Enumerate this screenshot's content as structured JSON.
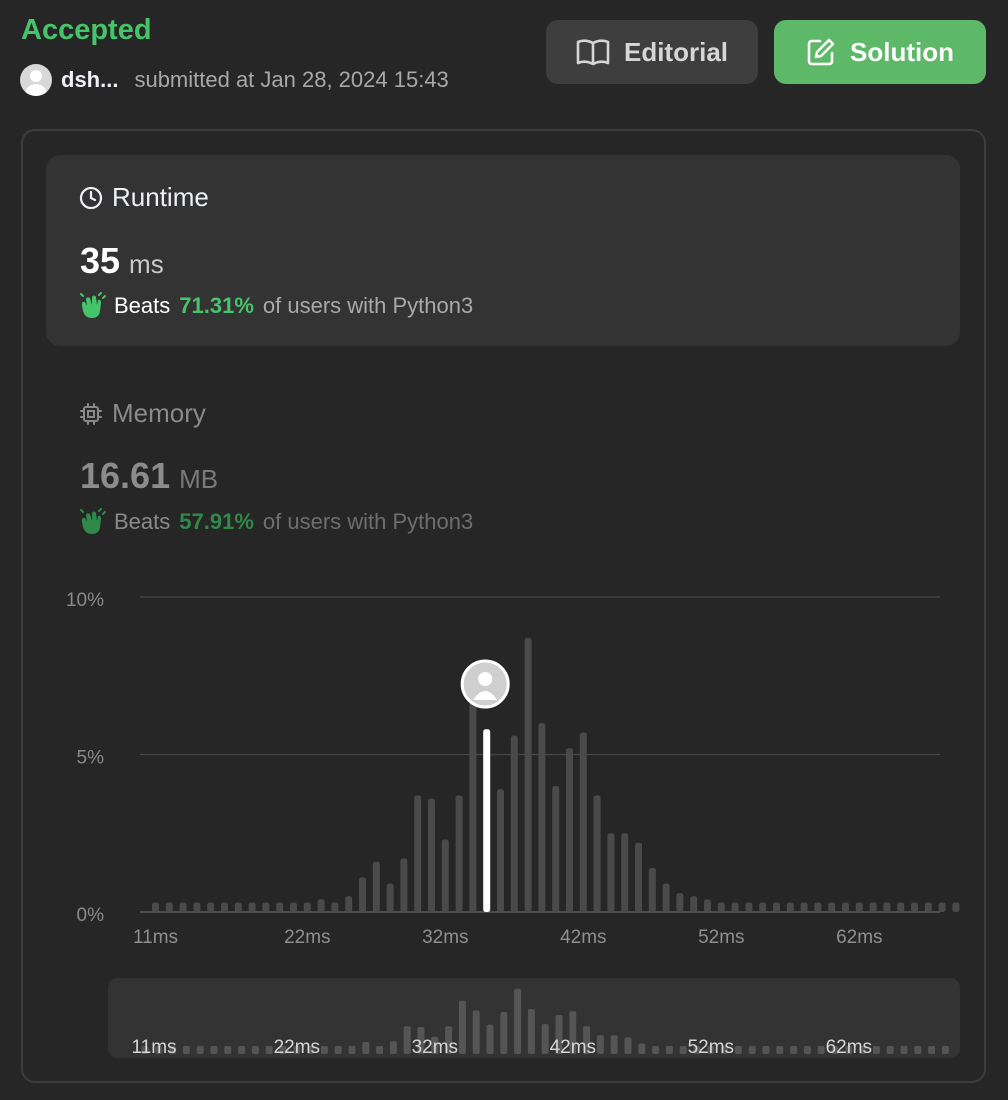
{
  "header": {
    "status": "Accepted",
    "username": "dsh...",
    "submitted_text": "submitted at Jan 28, 2024 15:43",
    "editorial_label": "Editorial",
    "solution_label": "Solution"
  },
  "runtime": {
    "title": "Runtime",
    "value": "35",
    "unit": "ms",
    "beats_word": "Beats",
    "beats_pct": "71.31%",
    "beats_rest": "of users with Python3"
  },
  "memory": {
    "title": "Memory",
    "value": "16.61",
    "unit": "MB",
    "beats_word": "Beats",
    "beats_pct": "57.91%",
    "beats_rest": "of users with Python3"
  },
  "colors": {
    "accent_green": "#45c46a",
    "solution_button": "#5db868",
    "bar": "#4a4a4a",
    "highlight_bar": "#ffffff"
  },
  "icons": {
    "editorial": "book-open-icon",
    "solution": "edit-icon",
    "runtime": "clock-icon",
    "memory": "cpu-chip-icon",
    "beats": "clapping-hands-icon"
  },
  "chart_data": {
    "type": "bar",
    "title": "",
    "xlabel": "",
    "ylabel": "",
    "y_ticks": [
      "10%",
      "5%",
      "0%"
    ],
    "x_ticks": [
      "11ms",
      "22ms",
      "32ms",
      "42ms",
      "52ms",
      "62ms"
    ],
    "ylim": [
      0,
      10
    ],
    "grid": true,
    "highlight_category": "35ms",
    "categories": [
      "11ms",
      "12ms",
      "13ms",
      "14ms",
      "15ms",
      "16ms",
      "17ms",
      "18ms",
      "19ms",
      "20ms",
      "21ms",
      "22ms",
      "23ms",
      "24ms",
      "25ms",
      "26ms",
      "27ms",
      "28ms",
      "29ms",
      "30ms",
      "31ms",
      "32ms",
      "33ms",
      "34ms",
      "35ms",
      "36ms",
      "37ms",
      "38ms",
      "39ms",
      "40ms",
      "41ms",
      "42ms",
      "43ms",
      "44ms",
      "45ms",
      "46ms",
      "47ms",
      "48ms",
      "49ms",
      "50ms",
      "51ms",
      "52ms",
      "53ms",
      "54ms",
      "55ms",
      "56ms",
      "57ms",
      "58ms",
      "59ms",
      "60ms",
      "61ms",
      "62ms",
      "63ms",
      "64ms",
      "65ms",
      "66ms",
      "67ms",
      "68ms",
      "69ms"
    ],
    "values": [
      0.3,
      0.3,
      0.3,
      0.3,
      0.3,
      0.3,
      0.3,
      0.3,
      0.3,
      0.3,
      0.3,
      0.3,
      0.4,
      0.3,
      0.5,
      1.1,
      1.6,
      0.9,
      1.7,
      3.7,
      3.6,
      2.3,
      3.7,
      7.1,
      5.8,
      3.9,
      5.6,
      8.7,
      6.0,
      4.0,
      5.2,
      5.7,
      3.7,
      2.5,
      2.5,
      2.2,
      1.4,
      0.9,
      0.6,
      0.5,
      0.4,
      0.3,
      0.3,
      0.3,
      0.3,
      0.3,
      0.3,
      0.3,
      0.3,
      0.3,
      0.3,
      0.3,
      0.3,
      0.3,
      0.3,
      0.3,
      0.3,
      0.3,
      0.3
    ],
    "overview_x_ticks": [
      "11ms",
      "22ms",
      "32ms",
      "42ms",
      "52ms",
      "62ms"
    ]
  }
}
